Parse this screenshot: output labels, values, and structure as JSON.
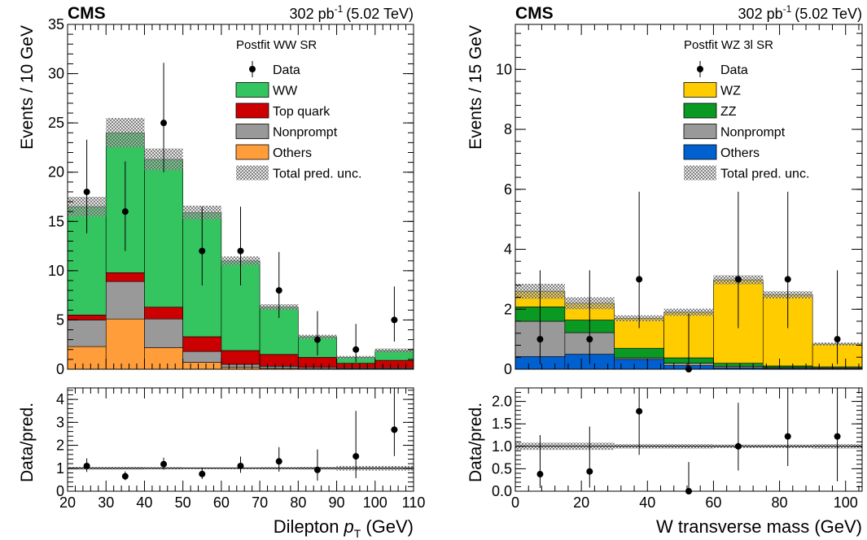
{
  "chart_data": [
    {
      "type": "bar",
      "stacked": true,
      "experiment": "CMS",
      "lumi": "302 pb",
      "lumi_sup": "-1",
      "energy": "(5.02 TeV)",
      "region_label": "Postfit WW SR",
      "ylabel": "Events / 10 GeV",
      "ylim": [
        0,
        35
      ],
      "yticks": [
        0,
        5,
        10,
        15,
        20,
        25,
        30,
        35
      ],
      "bin_edges": [
        20,
        30,
        40,
        50,
        60,
        70,
        80,
        90,
        100,
        110
      ],
      "series": [
        {
          "name": "Others",
          "color": "#ff9d3a",
          "values": [
            2.3,
            5.1,
            2.2,
            0.7,
            0.2,
            0.1,
            0.05,
            0.05,
            0.05
          ]
        },
        {
          "name": "Nonprompt",
          "color": "#999999",
          "values": [
            2.7,
            3.8,
            2.9,
            1.1,
            0.3,
            0.2,
            0.15,
            0.1,
            0.1
          ]
        },
        {
          "name": "Top quark",
          "color": "#cc0000",
          "values": [
            0.5,
            0.9,
            1.2,
            1.5,
            1.4,
            1.2,
            1.0,
            0.45,
            0.75
          ]
        },
        {
          "name": "WW",
          "color": "#35c560",
          "values": [
            11.0,
            14.2,
            15.0,
            12.6,
            9.1,
            4.8,
            2.1,
            0.6,
            1.0
          ]
        }
      ],
      "total_unc": [
        1.0,
        1.5,
        1.1,
        0.7,
        0.45,
        0.3,
        0.2,
        0.15,
        0.2
      ],
      "data": {
        "name": "Data",
        "x": [
          25,
          35,
          45,
          55,
          65,
          75,
          85,
          95,
          105
        ],
        "y": [
          18,
          16,
          25,
          12,
          12,
          8,
          3,
          2,
          5
        ],
        "err_lo": [
          4.2,
          4.0,
          5.0,
          3.5,
          3.5,
          2.8,
          1.6,
          1.3,
          2.2
        ],
        "err_hi": [
          5.3,
          5.1,
          6.1,
          4.5,
          4.5,
          3.9,
          2.9,
          2.6,
          3.4
        ]
      },
      "ratio": {
        "ylabel": "Data/pred.",
        "ylim": [
          0,
          4.5
        ],
        "yticks": [
          0,
          1,
          2,
          3,
          4
        ],
        "x": [
          25,
          35,
          45,
          55,
          65,
          75,
          85,
          95,
          105
        ],
        "y": [
          1.1,
          0.65,
          1.18,
          0.75,
          1.1,
          1.3,
          0.93,
          1.52,
          2.68
        ],
        "err_lo": [
          0.26,
          0.17,
          0.24,
          0.22,
          0.3,
          0.45,
          0.47,
          0.95,
          1.15
        ],
        "err_hi": [
          0.33,
          0.21,
          0.28,
          0.28,
          0.41,
          0.62,
          0.89,
          1.98,
          1.82
        ],
        "unc": [
          0.06,
          0.06,
          0.05,
          0.04,
          0.04,
          0.05,
          0.06,
          0.1,
          0.1
        ]
      },
      "xlabel": "Dilepton",
      "xlabel_var": "p",
      "xlabel_sub": "T",
      "xlabel_unit": "(GeV)",
      "xlim": [
        20,
        110
      ],
      "xticks": [
        20,
        30,
        40,
        50,
        60,
        70,
        80,
        90,
        100,
        110
      ],
      "legend": [
        "Data",
        "WW",
        "Top quark",
        "Nonprompt",
        "Others",
        "Total pred. unc."
      ]
    },
    {
      "type": "bar",
      "stacked": true,
      "experiment": "CMS",
      "lumi": "302 pb",
      "lumi_sup": "-1",
      "energy": "(5.02 TeV)",
      "region_label": "Postfit WZ 3l SR",
      "ylabel": "Events / 15 GeV",
      "ylim": [
        0,
        11.5
      ],
      "yticks": [
        0,
        2,
        4,
        6,
        8,
        10
      ],
      "bin_edges": [
        0,
        15,
        30,
        45,
        60,
        75,
        90,
        105
      ],
      "series": [
        {
          "name": "Others",
          "color": "#0060d0",
          "values": [
            0.42,
            0.5,
            0.33,
            0.12,
            0.05,
            0.03,
            0.02
          ]
        },
        {
          "name": "Nonprompt",
          "color": "#999999",
          "values": [
            1.18,
            0.72,
            0.05,
            0.08,
            0.05,
            0.03,
            0.03
          ]
        },
        {
          "name": "ZZ",
          "color": "#0a9a24",
          "values": [
            0.48,
            0.42,
            0.32,
            0.18,
            0.1,
            0.05,
            0.03
          ]
        },
        {
          "name": "WZ",
          "color": "#ffcc00",
          "values": [
            0.52,
            0.56,
            1.0,
            1.52,
            2.78,
            2.37,
            0.76
          ]
        }
      ],
      "total_unc": [
        0.25,
        0.2,
        0.1,
        0.12,
        0.15,
        0.12,
        0.05
      ],
      "data": {
        "name": "Data",
        "x": [
          7.5,
          22.5,
          37.5,
          52.5,
          67.5,
          82.5,
          97.5
        ],
        "y": [
          1,
          1,
          3,
          0,
          3,
          3,
          1
        ],
        "err_lo": [
          0.83,
          0.83,
          1.63,
          0,
          1.63,
          1.63,
          0.83
        ],
        "err_hi": [
          2.3,
          2.3,
          2.92,
          1.84,
          2.92,
          2.92,
          2.3
        ]
      },
      "ratio": {
        "ylabel": "Data/pred.",
        "ylim": [
          0,
          2.3
        ],
        "yticks": [
          0.0,
          0.5,
          1.0,
          1.5,
          2.0
        ],
        "ytick_labels": [
          "0.0",
          "0.5",
          "1.0",
          "1.5",
          "2.0"
        ],
        "x": [
          7.5,
          22.5,
          37.5,
          52.5,
          67.5,
          82.5,
          97.5
        ],
        "y": [
          0.38,
          0.44,
          1.78,
          0.0,
          1.0,
          1.22,
          1.22
        ],
        "err_lo": [
          0.31,
          0.36,
          0.97,
          0,
          0.54,
          0.66,
          1.0
        ],
        "err_hi": [
          0.87,
          1.0,
          1.75,
          0.65,
          0.97,
          1.19,
          2.81
        ],
        "unc": [
          0.08,
          0.08,
          0.05,
          0.05,
          0.04,
          0.04,
          0.05
        ]
      },
      "xlabel": "W transverse mass (GeV)",
      "xlim": [
        0,
        105
      ],
      "xticks": [
        0,
        20,
        40,
        60,
        80,
        100
      ],
      "legend": [
        "Data",
        "WZ",
        "ZZ",
        "Nonprompt",
        "Others",
        "Total pred. unc."
      ]
    }
  ]
}
